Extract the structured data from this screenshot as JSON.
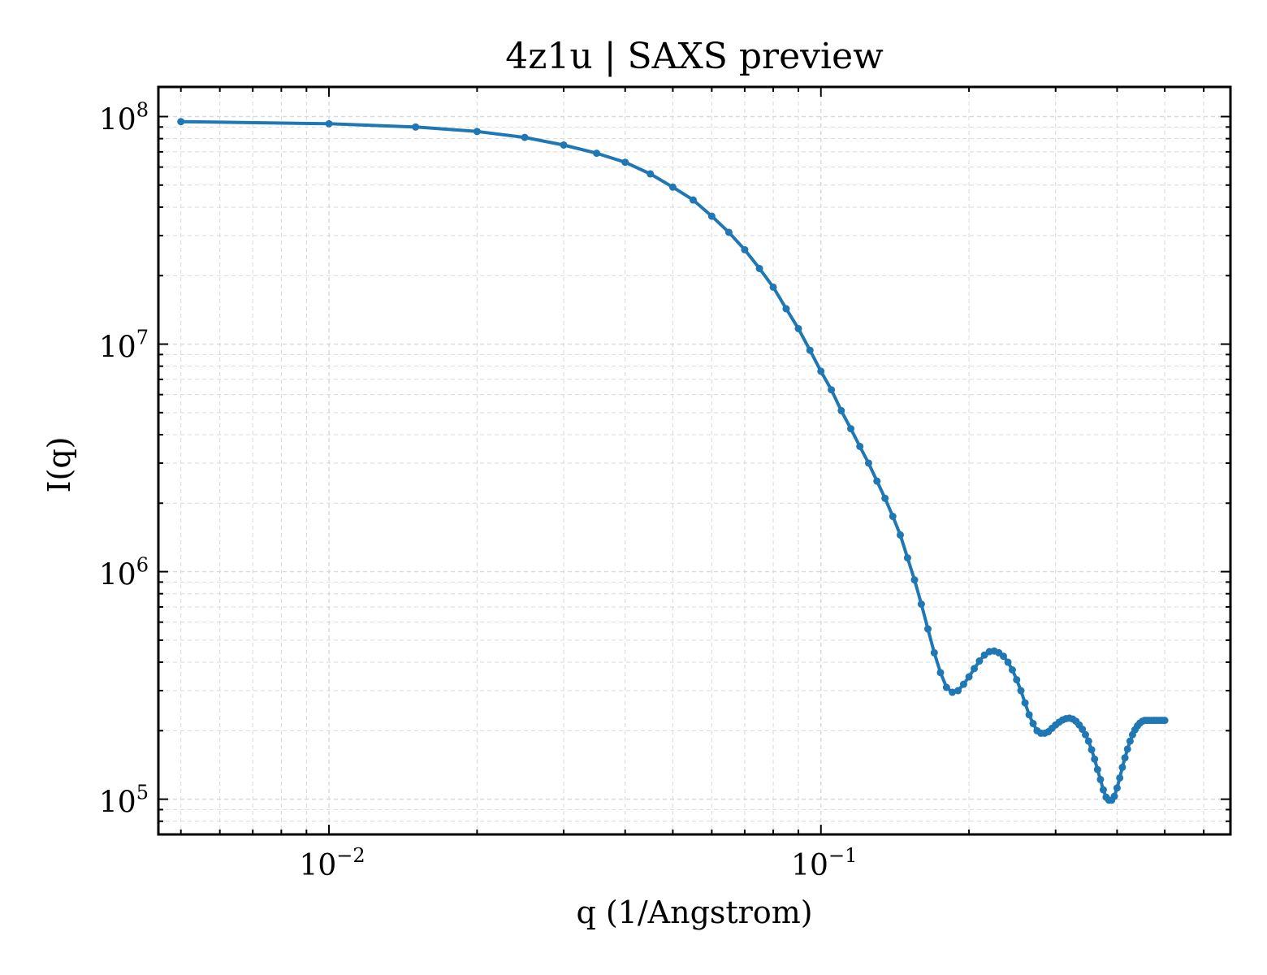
{
  "chart_data": {
    "type": "line",
    "title": "4z1u | SAXS preview",
    "xlabel": "q (1/Angstrom)",
    "ylabel": "I(q)",
    "xscale": "log",
    "yscale": "log",
    "xlim": [
      0.0045,
      0.68
    ],
    "ylim": [
      70000,
      135000000
    ],
    "grid": true,
    "legend": "none",
    "x_ticks": [
      {
        "base": "10",
        "exp": "−2",
        "value": 0.01
      },
      {
        "base": "10",
        "exp": "−1",
        "value": 0.1
      }
    ],
    "y_ticks": [
      {
        "base": "10",
        "exp": "5",
        "value": 100000
      },
      {
        "base": "10",
        "exp": "6",
        "value": 1000000
      },
      {
        "base": "10",
        "exp": "7",
        "value": 10000000
      },
      {
        "base": "10",
        "exp": "8",
        "value": 100000000
      }
    ],
    "colors": {
      "series": "#1f77b4",
      "grid": "#d9d9d9",
      "axes": "#000000"
    },
    "series": [
      {
        "marker": "circle",
        "x": [
          0.005,
          0.01,
          0.015,
          0.02,
          0.025,
          0.03,
          0.035,
          0.04,
          0.045,
          0.05,
          0.055,
          0.06,
          0.065,
          0.07,
          0.075,
          0.08,
          0.085,
          0.09,
          0.095,
          0.1,
          0.105,
          0.11,
          0.115,
          0.12,
          0.125,
          0.13,
          0.135,
          0.14,
          0.145,
          0.15,
          0.155,
          0.16,
          0.165,
          0.17,
          0.175,
          0.18,
          0.185,
          0.19,
          0.195,
          0.2,
          0.205,
          0.21,
          0.215,
          0.22,
          0.225,
          0.23,
          0.235,
          0.24,
          0.245,
          0.25,
          0.255,
          0.26,
          0.265,
          0.27,
          0.275,
          0.28,
          0.285,
          0.29,
          0.295,
          0.3,
          0.305,
          0.31,
          0.315,
          0.32,
          0.325,
          0.33,
          0.335,
          0.34,
          0.345,
          0.35,
          0.355,
          0.36,
          0.365,
          0.37,
          0.375,
          0.38,
          0.385,
          0.39,
          0.395,
          0.4,
          0.405,
          0.41,
          0.415,
          0.42,
          0.425,
          0.43,
          0.435,
          0.44,
          0.445,
          0.45,
          0.455,
          0.46,
          0.465,
          0.47,
          0.475,
          0.48,
          0.485,
          0.49,
          0.495,
          0.5
        ],
        "y": [
          95000000,
          93000000,
          90000000,
          86000000,
          81000000,
          75000000,
          69000000,
          63000000,
          56000000,
          49000000,
          43000000,
          36500000,
          31000000,
          26000000,
          21500000,
          17800000,
          14300000,
          11700000,
          9400000,
          7600000,
          6300000,
          5100000,
          4250000,
          3550000,
          3000000,
          2500000,
          2100000,
          1750000,
          1450000,
          1150000,
          920000,
          720000,
          560000,
          440000,
          360000,
          310000,
          295000,
          300000,
          320000,
          345000,
          375000,
          405000,
          430000,
          445000,
          448000,
          440000,
          425000,
          400000,
          370000,
          335000,
          300000,
          265000,
          235000,
          215000,
          200000,
          195000,
          195000,
          198000,
          205000,
          212000,
          218000,
          223000,
          226000,
          227000,
          225000,
          220000,
          212000,
          203000,
          192000,
          180000,
          165000,
          150000,
          135000,
          122000,
          110000,
          102000,
          99000,
          99000,
          103000,
          112000,
          124000,
          138000,
          152000,
          166000,
          180000,
          192000,
          202000,
          210000,
          216000,
          220000,
          222000,
          222000,
          222000,
          222000,
          222000,
          222000,
          222000,
          222000,
          222000,
          222000
        ]
      }
    ]
  }
}
